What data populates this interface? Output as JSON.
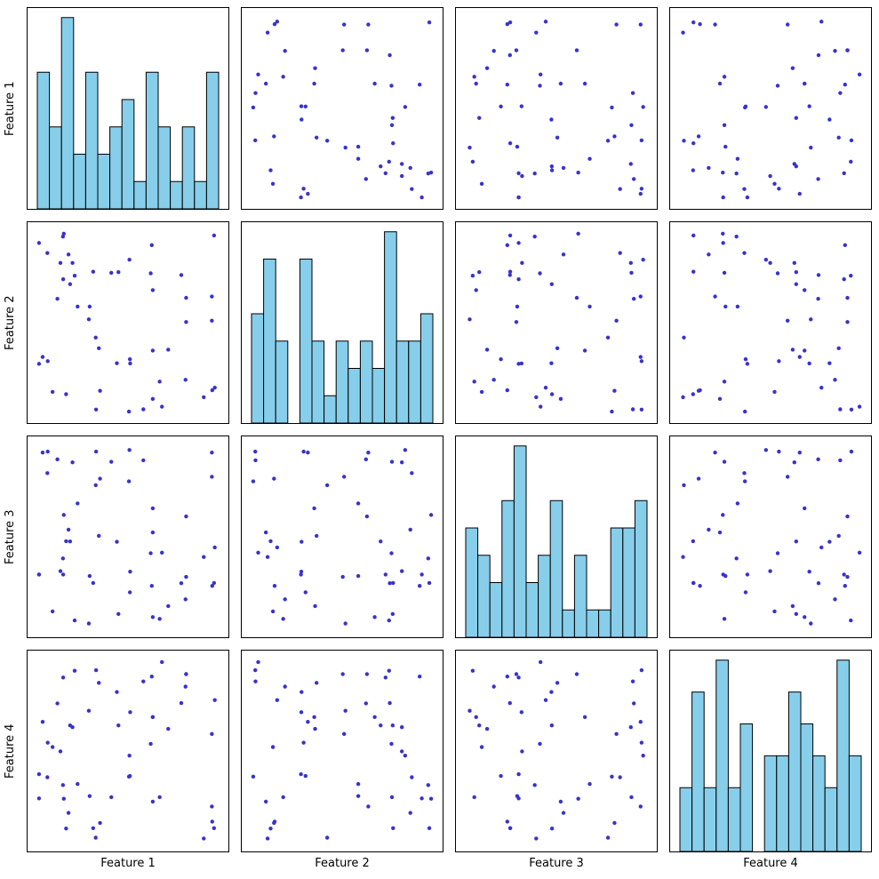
{
  "chart_data": {
    "type": "scatter",
    "subtype": "scatter-matrix-pairplot",
    "features": [
      "Feature 1",
      "Feature 2",
      "Feature 3",
      "Feature 4"
    ],
    "n_samples": 50,
    "bins": 15,
    "value_range": [
      0,
      1
    ],
    "diagonal": "histogram",
    "layout_hints": {
      "grid": false,
      "legend": false,
      "tick_labels": false,
      "axis_padding_fraction": 0.05
    },
    "hist_fill": "#87CEEB",
    "hist_edge": "#000000",
    "point_color": "#3832CD",
    "point_radius": 2.2,
    "hist_counts": [
      [
        5,
        3,
        7,
        2,
        5,
        2,
        3,
        4,
        1,
        5,
        3,
        1,
        3,
        1,
        5
      ],
      [
        4,
        6,
        3,
        0,
        6,
        3,
        1,
        3,
        2,
        3,
        2,
        7,
        3,
        3,
        4
      ],
      [
        4,
        3,
        2,
        5,
        7,
        2,
        3,
        5,
        1,
        3,
        1,
        1,
        4,
        4,
        5
      ],
      [
        2,
        5,
        2,
        6,
        2,
        4,
        0,
        3,
        3,
        5,
        4,
        3,
        2,
        6,
        3
      ]
    ],
    "sample_bins": [
      [
        2,
        9,
        0,
        14,
        4,
        7,
        12,
        1,
        6,
        10,
        2,
        0,
        9,
        14,
        4,
        3,
        5,
        7,
        2,
        8,
        0,
        9,
        14,
        4,
        1,
        6,
        12,
        2,
        10,
        0,
        9,
        4,
        14,
        7,
        3,
        5,
        2,
        1,
        6,
        13,
        0,
        9,
        14,
        7,
        12,
        2,
        10,
        11,
        2,
        4
      ],
      [
        11,
        1,
        4,
        14,
        7,
        0,
        9,
        12,
        11,
        5,
        1,
        4,
        13,
        2,
        8,
        11,
        1,
        4,
        10,
        0,
        14,
        5,
        9,
        11,
        1,
        4,
        7,
        12,
        2,
        13,
        11,
        0,
        1,
        4,
        8,
        5,
        14,
        9,
        11,
        1,
        4,
        10,
        7,
        12,
        2,
        13,
        0,
        11,
        14,
        6
      ],
      [
        4,
        7,
        14,
        3,
        0,
        12,
        9,
        4,
        13,
        1,
        7,
        14,
        3,
        6,
        4,
        0,
        12,
        2,
        7,
        13,
        4,
        9,
        14,
        3,
        1,
        7,
        4,
        13,
        0,
        12,
        6,
        14,
        3,
        4,
        10,
        7,
        9,
        13,
        1,
        5,
        4,
        0,
        12,
        14,
        2,
        8,
        6,
        3,
        5,
        11
      ],
      [
        13,
        3,
        9,
        1,
        10,
        5,
        13,
        7,
        3,
        9,
        1,
        8,
        13,
        11,
        3,
        14,
        1,
        5,
        9,
        13,
        3,
        10,
        2,
        1,
        7,
        12,
        13,
        9,
        3,
        5,
        8,
        14,
        1,
        10,
        4,
        13,
        3,
        11,
        9,
        0,
        5,
        10,
        8,
        7,
        12,
        2,
        14,
        11,
        4,
        0
      ]
    ],
    "jitter": [
      0.14,
      0.62,
      0.31,
      0.83,
      0.47,
      0.09,
      0.71,
      0.55,
      0.26,
      0.91,
      0.38,
      0.68,
      0.19,
      0.77,
      0.44,
      0.58,
      0.12,
      0.86,
      0.33,
      0.66
    ]
  }
}
